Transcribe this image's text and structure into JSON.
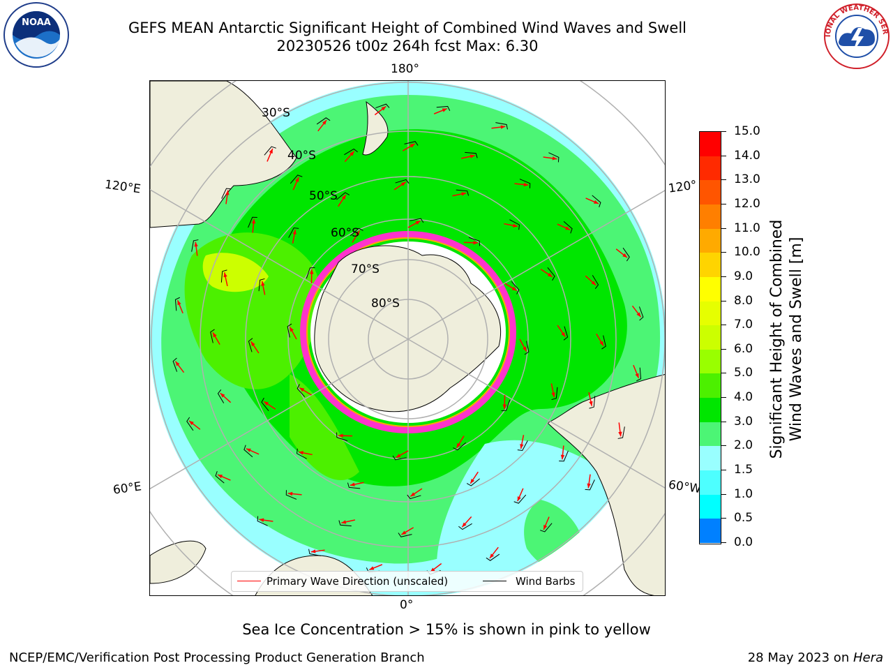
{
  "title": {
    "line1": "GEFS MEAN Antarctic Significant Height of Combined Wind Waves and Swell",
    "line2": "20230526 t00z 264h fcst   Max: 6.30"
  },
  "map": {
    "projection": "south-polar-stereographic",
    "longitude_labels": {
      "top": "180°",
      "bottom": "0°",
      "left_upper": "120°E",
      "left_lower": "60°E",
      "right_upper": "120°",
      "right_lower": "60°W"
    },
    "latitude_labels": [
      "30°S",
      "40°S",
      "50°S",
      "60°S",
      "70°S",
      "80°S"
    ],
    "legend": {
      "wave_label": "Primary Wave Direction (unscaled)",
      "wave_color": "#ff0000",
      "wind_label": "Wind Barbs",
      "wind_color": "#000000"
    }
  },
  "colorbar": {
    "label_line1": "Significant Height of Combined",
    "label_line2": "Wind Waves and Swell [m]",
    "ticks": [
      "15.0",
      "14.0",
      "13.0",
      "12.0",
      "11.0",
      "10.0",
      "9.0",
      "8.0",
      "7.0",
      "6.0",
      "5.0",
      "4.0",
      "3.0",
      "2.0",
      "1.5",
      "1.0",
      "0.5",
      "0.0"
    ],
    "colors": [
      "#ff0000",
      "#ff2a00",
      "#ff5500",
      "#ff7f00",
      "#ffaa00",
      "#ffd400",
      "#ffff00",
      "#e6ff00",
      "#ccff00",
      "#99ff00",
      "#4cf000",
      "#00e600",
      "#4cf575",
      "#99ffff",
      "#4dffff",
      "#00ffff",
      "#0080ff",
      "#0000ff"
    ]
  },
  "notes": {
    "ice": "Sea Ice Concentration > 15% is shown in pink to yellow",
    "credit_left": "NCEP/EMC/Verification Post Processing Product Generation Branch",
    "credit_right_prefix": "28 May 2023 on ",
    "credit_right_host": "Hera"
  },
  "logos": {
    "left": "noaa-logo",
    "right": "nws-logo",
    "left_text": "NOAA",
    "right_text": "NATIONAL WEATHER SERVICE"
  }
}
